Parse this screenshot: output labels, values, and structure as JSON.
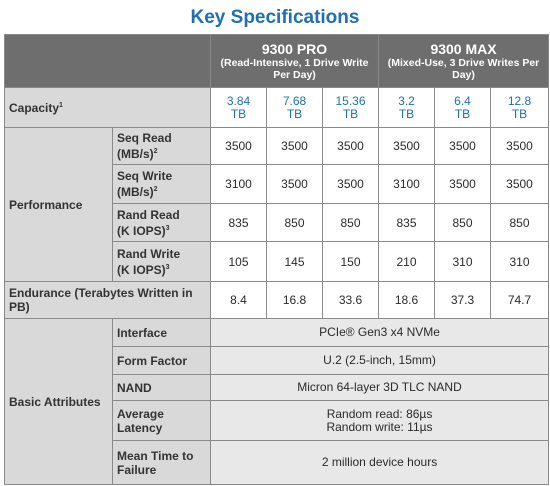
{
  "title": "Key Specifications",
  "products": [
    {
      "name": "9300 PRO",
      "subtitle": "(Read-Intensive, 1 Drive Write Per Day)"
    },
    {
      "name": "9300 MAX",
      "subtitle": "(Mixed-Use, 3 Drive Writes Per Day)"
    }
  ],
  "capacity": {
    "label": "Capacity",
    "footnote": "1",
    "values": [
      [
        "3.84",
        "TB"
      ],
      [
        "7.68",
        "TB"
      ],
      [
        "15.36",
        "TB"
      ],
      [
        "3.2",
        "TB"
      ],
      [
        "6.4",
        "TB"
      ],
      [
        "12.8",
        "TB"
      ]
    ]
  },
  "performance": {
    "label": "Performance",
    "rows": [
      {
        "label_line1": "Seq Read",
        "label_line2": "(MB/s)",
        "footnote": "2",
        "values": [
          "3500",
          "3500",
          "3500",
          "3500",
          "3500",
          "3500"
        ]
      },
      {
        "label_line1": "Seq Write",
        "label_line2": "(MB/s)",
        "footnote": "2",
        "values": [
          "3100",
          "3500",
          "3500",
          "3100",
          "3500",
          "3500"
        ]
      },
      {
        "label_line1": "Rand Read",
        "label_line2": "(K IOPS)",
        "footnote": "3",
        "values": [
          "835",
          "850",
          "850",
          "835",
          "850",
          "850"
        ]
      },
      {
        "label_line1": "Rand Write",
        "label_line2": "(K IOPS)",
        "footnote": "3",
        "values": [
          "105",
          "145",
          "150",
          "210",
          "310",
          "310"
        ]
      }
    ]
  },
  "endurance": {
    "label": "Endurance (Terabytes Written in PB)",
    "values": [
      "8.4",
      "16.8",
      "33.6",
      "18.6",
      "37.3",
      "74.7"
    ]
  },
  "basic_attributes": {
    "label": "Basic Attributes",
    "rows": [
      {
        "label": "Interface",
        "value": "PCIe® Gen3 x4 NVMe"
      },
      {
        "label": "Form Factor",
        "value": "U.2 (2.5-inch, 15mm)"
      },
      {
        "label": "NAND",
        "value": "Micron 64-layer 3D TLC NAND"
      },
      {
        "label": "Average Latency",
        "value_line1": "Random read: 86µs",
        "value_line2": "Random write: 11µs"
      },
      {
        "label": "Mean Time to Failure",
        "value": "2 million device hours"
      }
    ]
  }
}
